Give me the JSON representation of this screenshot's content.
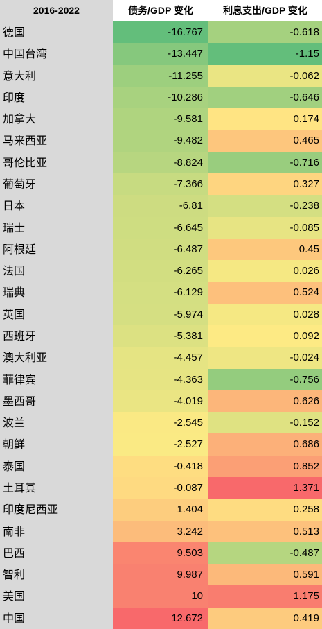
{
  "chart_data": {
    "type": "table",
    "columns": [
      "2016-2022",
      "债务/GDP 变化",
      "利息支出/GDP 变化"
    ],
    "rows": [
      {
        "country": "德国",
        "debt_change": "-16.767",
        "interest_change": "-0.618"
      },
      {
        "country": "中国台湾",
        "debt_change": "-13.447",
        "interest_change": "-1.15"
      },
      {
        "country": "意大利",
        "debt_change": "-11.255",
        "interest_change": "-0.062"
      },
      {
        "country": "印度",
        "debt_change": "-10.286",
        "interest_change": "-0.646"
      },
      {
        "country": "加拿大",
        "debt_change": "-9.581",
        "interest_change": "0.174"
      },
      {
        "country": "马来西亚",
        "debt_change": "-9.482",
        "interest_change": "0.465"
      },
      {
        "country": "哥伦比亚",
        "debt_change": "-8.824",
        "interest_change": "-0.716"
      },
      {
        "country": "葡萄牙",
        "debt_change": "-7.366",
        "interest_change": "0.327"
      },
      {
        "country": "日本",
        "debt_change": "-6.81",
        "interest_change": "-0.238"
      },
      {
        "country": "瑞士",
        "debt_change": "-6.645",
        "interest_change": "-0.085"
      },
      {
        "country": "阿根廷",
        "debt_change": "-6.487",
        "interest_change": "0.45"
      },
      {
        "country": "法国",
        "debt_change": "-6.265",
        "interest_change": "0.026"
      },
      {
        "country": "瑞典",
        "debt_change": "-6.129",
        "interest_change": "0.524"
      },
      {
        "country": "英国",
        "debt_change": "-5.974",
        "interest_change": "0.028"
      },
      {
        "country": "西班牙",
        "debt_change": "-5.381",
        "interest_change": "0.092"
      },
      {
        "country": "澳大利亚",
        "debt_change": "-4.457",
        "interest_change": "-0.024"
      },
      {
        "country": "菲律宾",
        "debt_change": "-4.363",
        "interest_change": "-0.756"
      },
      {
        "country": "墨西哥",
        "debt_change": "-4.019",
        "interest_change": "0.626"
      },
      {
        "country": "波兰",
        "debt_change": "-2.545",
        "interest_change": "-0.152"
      },
      {
        "country": "朝鲜",
        "debt_change": "-2.527",
        "interest_change": "0.686"
      },
      {
        "country": "泰国",
        "debt_change": "-0.418",
        "interest_change": "0.852"
      },
      {
        "country": "土耳其",
        "debt_change": "-0.087",
        "interest_change": "1.371"
      },
      {
        "country": "印度尼西亚",
        "debt_change": "1.404",
        "interest_change": "0.258"
      },
      {
        "country": "南非",
        "debt_change": "3.242",
        "interest_change": "0.513"
      },
      {
        "country": "巴西",
        "debt_change": "9.503",
        "interest_change": "-0.487"
      },
      {
        "country": "智利",
        "debt_change": "9.987",
        "interest_change": "0.591"
      },
      {
        "country": "美国",
        "debt_change": "10",
        "interest_change": "1.175"
      },
      {
        "country": "中国",
        "debt_change": "12.672",
        "interest_change": "0.419"
      }
    ],
    "color_scale": {
      "low": "#63be7b",
      "mid": "#ffeb84",
      "high": "#f8696b"
    }
  }
}
